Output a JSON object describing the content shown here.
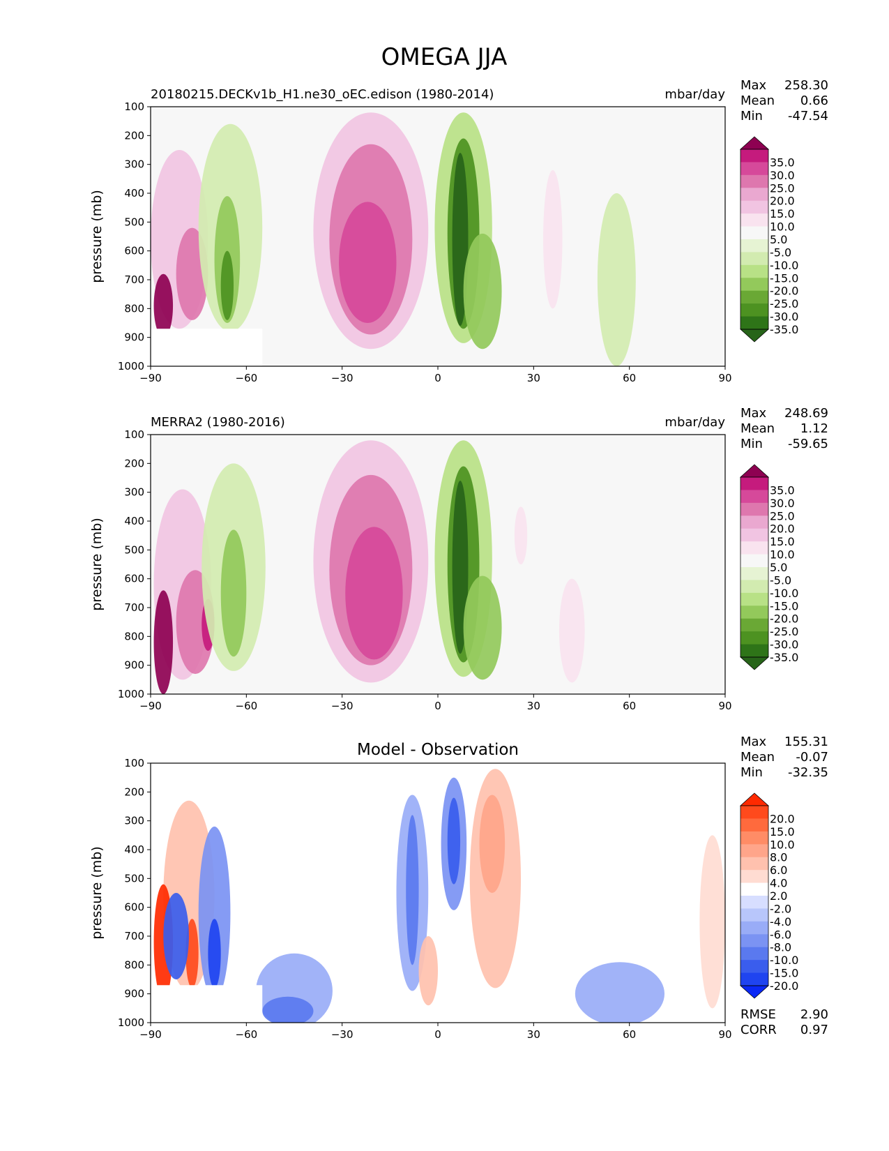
{
  "title": "OMEGA JJA",
  "chart_data": [
    {
      "type": "heatmap",
      "title": "20180215.DECKv1b_H1.ne30_oEC.edison (1980-2014)",
      "units": "mbar/day",
      "ylabel": "pressure (mb)",
      "xticks": [
        "−90",
        "−60",
        "−30",
        "0",
        "30",
        "60",
        "90"
      ],
      "yticks": [
        "100",
        "200",
        "300",
        "400",
        "500",
        "600",
        "700",
        "800",
        "900",
        "1000"
      ],
      "xlim": [
        -90,
        90
      ],
      "ylim": [
        1000,
        100
      ],
      "stats": [
        {
          "label": "Max",
          "value": "258.30"
        },
        {
          "label": "Mean",
          "value": "0.66"
        },
        {
          "label": "Min",
          "value": "-47.54"
        }
      ],
      "colorbar": {
        "levels": [
          "35.0",
          "30.0",
          "25.0",
          "20.0",
          "15.0",
          "10.0",
          "5.0",
          "-5.0",
          "-10.0",
          "-15.0",
          "-20.0",
          "-25.0",
          "-30.0",
          "-35.0"
        ],
        "colors": [
          "#8e0152",
          "#c51b7d",
          "#d6499a",
          "#de77ae",
          "#eaa8d0",
          "#f1c4e2",
          "#f9e3ef",
          "#f7f7f7",
          "#e6f3d3",
          "#d2ebb0",
          "#b8e186",
          "#93c95b",
          "#6aa835",
          "#4d9221",
          "#2e7418",
          "#276419"
        ]
      },
      "regions": [
        {
          "lon": -81,
          "p": 560,
          "rx": 9,
          "rp": 310,
          "level": 10,
          "kind": "pos"
        },
        {
          "lon": -77,
          "p": 680,
          "rx": 5,
          "rp": 160,
          "level": 20,
          "kind": "pos"
        },
        {
          "lon": -86,
          "p": 790,
          "rx": 3,
          "rp": 110,
          "level": 35,
          "kind": "pos"
        },
        {
          "lon": -65,
          "p": 520,
          "rx": 10,
          "rp": 360,
          "level": -5,
          "kind": "neg"
        },
        {
          "lon": -66,
          "p": 630,
          "rx": 4,
          "rp": 220,
          "level": -15,
          "kind": "neg"
        },
        {
          "lon": -66,
          "p": 720,
          "rx": 2,
          "rp": 120,
          "level": -25,
          "kind": "neg"
        },
        {
          "lon": -21,
          "p": 530,
          "rx": 18,
          "rp": 410,
          "level": 10,
          "kind": "pos"
        },
        {
          "lon": -21,
          "p": 560,
          "rx": 13,
          "rp": 330,
          "level": 20,
          "kind": "pos"
        },
        {
          "lon": -22,
          "p": 640,
          "rx": 9,
          "rp": 210,
          "level": 25,
          "kind": "pos"
        },
        {
          "lon": 8,
          "p": 520,
          "rx": 9,
          "rp": 400,
          "level": -10,
          "kind": "neg"
        },
        {
          "lon": 8,
          "p": 540,
          "rx": 5,
          "rp": 330,
          "level": -25,
          "kind": "neg"
        },
        {
          "lon": 7,
          "p": 560,
          "rx": 2.5,
          "rp": 300,
          "level": -35,
          "kind": "neg"
        },
        {
          "lon": 14,
          "p": 740,
          "rx": 6,
          "rp": 200,
          "level": -15,
          "kind": "neg"
        },
        {
          "lon": 36,
          "p": 560,
          "rx": 3,
          "rp": 240,
          "level": 5,
          "kind": "pos"
        },
        {
          "lon": 56,
          "p": 700,
          "rx": 6,
          "rp": 300,
          "level": -5,
          "kind": "neg"
        }
      ]
    },
    {
      "type": "heatmap",
      "title": "MERRA2 (1980-2016)",
      "units": "mbar/day",
      "ylabel": "pressure (mb)",
      "xticks": [
        "−90",
        "−60",
        "−30",
        "0",
        "30",
        "60",
        "90"
      ],
      "yticks": [
        "100",
        "200",
        "300",
        "400",
        "500",
        "600",
        "700",
        "800",
        "900",
        "1000"
      ],
      "xlim": [
        -90,
        90
      ],
      "ylim": [
        1000,
        100
      ],
      "stats": [
        {
          "label": "Max",
          "value": "248.69"
        },
        {
          "label": "Mean",
          "value": "1.12"
        },
        {
          "label": "Min",
          "value": "-59.65"
        }
      ],
      "colorbar": {
        "levels": [
          "35.0",
          "30.0",
          "25.0",
          "20.0",
          "15.0",
          "10.0",
          "5.0",
          "-5.0",
          "-10.0",
          "-15.0",
          "-20.0",
          "-25.0",
          "-30.0",
          "-35.0"
        ],
        "colors": [
          "#8e0152",
          "#c51b7d",
          "#d6499a",
          "#de77ae",
          "#eaa8d0",
          "#f1c4e2",
          "#f9e3ef",
          "#f7f7f7",
          "#e6f3d3",
          "#d2ebb0",
          "#b8e186",
          "#93c95b",
          "#6aa835",
          "#4d9221",
          "#2e7418",
          "#276419"
        ]
      },
      "regions": [
        {
          "lon": -80,
          "p": 620,
          "rx": 9,
          "rp": 330,
          "level": 10,
          "kind": "pos"
        },
        {
          "lon": -76,
          "p": 750,
          "rx": 6,
          "rp": 180,
          "level": 20,
          "kind": "pos"
        },
        {
          "lon": -86,
          "p": 820,
          "rx": 3,
          "rp": 180,
          "level": 35,
          "kind": "pos"
        },
        {
          "lon": -72,
          "p": 760,
          "rx": 2,
          "rp": 90,
          "level": 30,
          "kind": "pos"
        },
        {
          "lon": -64,
          "p": 560,
          "rx": 10,
          "rp": 360,
          "level": -5,
          "kind": "neg"
        },
        {
          "lon": -64,
          "p": 650,
          "rx": 4,
          "rp": 220,
          "level": -15,
          "kind": "neg"
        },
        {
          "lon": -21,
          "p": 540,
          "rx": 18,
          "rp": 420,
          "level": 10,
          "kind": "pos"
        },
        {
          "lon": -21,
          "p": 570,
          "rx": 13,
          "rp": 330,
          "level": 20,
          "kind": "pos"
        },
        {
          "lon": -20,
          "p": 650,
          "rx": 9,
          "rp": 230,
          "level": 25,
          "kind": "pos"
        },
        {
          "lon": 8,
          "p": 530,
          "rx": 9,
          "rp": 410,
          "level": -10,
          "kind": "neg"
        },
        {
          "lon": 8,
          "p": 550,
          "rx": 5,
          "rp": 340,
          "level": -25,
          "kind": "neg"
        },
        {
          "lon": 7,
          "p": 560,
          "rx": 2.5,
          "rp": 300,
          "level": -35,
          "kind": "neg"
        },
        {
          "lon": 14,
          "p": 770,
          "rx": 6,
          "rp": 180,
          "level": -15,
          "kind": "neg"
        },
        {
          "lon": 26,
          "p": 450,
          "rx": 2,
          "rp": 100,
          "level": 5,
          "kind": "pos"
        },
        {
          "lon": 42,
          "p": 780,
          "rx": 4,
          "rp": 180,
          "level": 5,
          "kind": "pos"
        }
      ]
    },
    {
      "type": "heatmap",
      "title": "Model - Observation",
      "units": "",
      "ylabel": "pressure (mb)",
      "xticks": [
        "−90",
        "−60",
        "−30",
        "0",
        "30",
        "60",
        "90"
      ],
      "yticks": [
        "100",
        "200",
        "300",
        "400",
        "500",
        "600",
        "700",
        "800",
        "900",
        "1000"
      ],
      "xlim": [
        -90,
        90
      ],
      "ylim": [
        1000,
        100
      ],
      "stats": [
        {
          "label": "Max",
          "value": "155.31"
        },
        {
          "label": "Mean",
          "value": "-0.07"
        },
        {
          "label": "Min",
          "value": "-32.35"
        }
      ],
      "extra_stats": [
        {
          "label": "RMSE",
          "value": "2.90"
        },
        {
          "label": "CORR",
          "value": "0.97"
        }
      ],
      "colorbar": {
        "levels": [
          "20.0",
          "15.0",
          "10.0",
          "8.0",
          "6.0",
          "4.0",
          "2.0",
          "-2.0",
          "-4.0",
          "-6.0",
          "-8.0",
          "-10.0",
          "-15.0",
          "-20.0"
        ],
        "colors": [
          "#ff2a00",
          "#ff4a1c",
          "#ff6a3d",
          "#ff8c66",
          "#ffa58a",
          "#ffc1ae",
          "#ffdcd2",
          "#ffffff",
          "#d7deff",
          "#b8c6fb",
          "#99acf7",
          "#7b93f3",
          "#5a79ef",
          "#3a5ded",
          "#1f44f0",
          "#0a28f5"
        ]
      },
      "regions": [
        {
          "lon": -78,
          "p": 560,
          "rx": 8,
          "rp": 330,
          "level": 4,
          "kind": "pos"
        },
        {
          "lon": -86,
          "p": 720,
          "rx": 3,
          "rp": 200,
          "level": 20,
          "kind": "pos"
        },
        {
          "lon": -77,
          "p": 760,
          "rx": 2,
          "rp": 120,
          "level": 15,
          "kind": "pos"
        },
        {
          "lon": -82,
          "p": 700,
          "rx": 4,
          "rp": 150,
          "level": -10,
          "kind": "neg"
        },
        {
          "lon": -70,
          "p": 620,
          "rx": 5,
          "rp": 300,
          "level": -6,
          "kind": "neg"
        },
        {
          "lon": -70,
          "p": 760,
          "rx": 2,
          "rp": 120,
          "level": -15,
          "kind": "neg"
        },
        {
          "lon": -45,
          "p": 890,
          "rx": 12,
          "rp": 130,
          "level": -4,
          "kind": "neg"
        },
        {
          "lon": -47,
          "p": 960,
          "rx": 8,
          "rp": 50,
          "level": -8,
          "kind": "neg"
        },
        {
          "lon": -8,
          "p": 550,
          "rx": 5,
          "rp": 340,
          "level": -4,
          "kind": "neg"
        },
        {
          "lon": -8,
          "p": 540,
          "rx": 2,
          "rp": 260,
          "level": -8,
          "kind": "neg"
        },
        {
          "lon": 5,
          "p": 380,
          "rx": 4,
          "rp": 230,
          "level": -6,
          "kind": "neg"
        },
        {
          "lon": 5,
          "p": 370,
          "rx": 2,
          "rp": 150,
          "level": -10,
          "kind": "neg"
        },
        {
          "lon": 18,
          "p": 500,
          "rx": 8,
          "rp": 380,
          "level": 4,
          "kind": "pos"
        },
        {
          "lon": 17,
          "p": 380,
          "rx": 4,
          "rp": 170,
          "level": 6,
          "kind": "pos"
        },
        {
          "lon": -3,
          "p": 820,
          "rx": 3,
          "rp": 120,
          "level": 4,
          "kind": "pos"
        },
        {
          "lon": 57,
          "p": 900,
          "rx": 14,
          "rp": 110,
          "level": -4,
          "kind": "neg"
        },
        {
          "lon": 86,
          "p": 650,
          "rx": 4,
          "rp": 300,
          "level": 2,
          "kind": "pos"
        }
      ]
    }
  ]
}
